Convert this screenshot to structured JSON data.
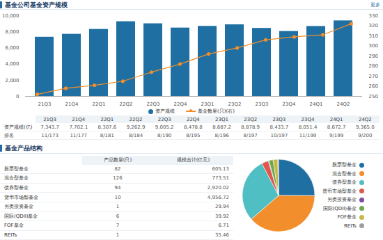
{
  "header": {
    "title": "基金公司基金资产规模",
    "link": "更多"
  },
  "chart_data": [
    {
      "type": "bar",
      "categories": [
        "21Q3",
        "21Q4",
        "22Q1",
        "22Q2",
        "22Q3",
        "22Q4",
        "23Q1",
        "23Q2",
        "23Q3",
        "23Q4",
        "24Q1",
        "24Q2"
      ],
      "series": [
        {
          "name": "资产规模",
          "type": "bar",
          "color": "#1f6fa3",
          "values": [
            7343.7,
            7702.1,
            8307.6,
            9262.9,
            9005.2,
            8478.8,
            8687.2,
            8878.9,
            8433.7,
            8051.4,
            8672.7,
            9365.0
          ]
        },
        {
          "name": "基金数量(只)(右)",
          "type": "line",
          "axis": "y2",
          "color": "#f28e2b",
          "marker": "circle",
          "values": [
            252,
            258,
            261,
            265,
            274,
            282,
            292,
            298,
            306,
            309,
            311,
            322
          ]
        }
      ],
      "ylim": [
        0,
        10000
      ],
      "yticks": [
        0,
        {
          "value": 2000,
          "label": "2,000"
        },
        {
          "value": 4000,
          "label": "4,000"
        },
        {
          "value": 6000,
          "label": "6,000"
        },
        {
          "value": 8000,
          "label": "8,000"
        },
        {
          "value": 10000,
          "label": "10,000"
        }
      ],
      "y2lim": [
        250,
        330
      ],
      "y2ticks": [
        250,
        260,
        270,
        280,
        290,
        300,
        310,
        320,
        330
      ],
      "grid": false,
      "legend": "bottom"
    },
    {
      "type": "pie",
      "categories": [
        "股票型基金",
        "混合型基金",
        "债券型基金",
        "货币市场型基金",
        "另类投资基金",
        "国际(QDII)基金",
        "FOF基金",
        "REITs"
      ],
      "values": [
        82,
        126,
        94,
        10,
        1,
        6,
        7,
        1
      ],
      "colors": [
        "#1f6fa3",
        "#f28e2b",
        "#4fbfc4",
        "#e0584b",
        "#7a4f9e",
        "#6aa84f",
        "#c8b84a",
        "#9e9e9e"
      ],
      "legend": "right"
    }
  ],
  "scale_table": {
    "columns": [
      "21Q3",
      "21Q4",
      "22Q1",
      "22Q2",
      "22Q3",
      "22Q4",
      "23Q1",
      "23Q2",
      "23Q3",
      "23Q4",
      "24Q1",
      "24Q2"
    ],
    "rows": [
      {
        "label": "资产规模(亿)",
        "cells": [
          "7,343.7",
          "7,702.1",
          "8,307.6",
          "9,262.9",
          "9,005.2",
          "8,478.8",
          "8,687.2",
          "8,878.9",
          "8,433.7",
          "8,051.4",
          "8,672.7",
          "9,365.0"
        ]
      },
      {
        "label": "排名",
        "cells": [
          "11/173",
          "11/177",
          "8/181",
          "8/184",
          "8/190",
          "8/195",
          "8/196",
          "8/197",
          "10/197",
          "11/199",
          "9/199",
          "9/200"
        ]
      }
    ]
  },
  "section": {
    "title": "基金产品结构"
  },
  "product_table": {
    "columns": [
      "产品数量(只)",
      "规模合计(亿元)"
    ],
    "rows": [
      {
        "label": "股票型基金",
        "cells": [
          "82",
          "605.13"
        ]
      },
      {
        "label": "混合型基金",
        "cells": [
          "126",
          "773.51"
        ]
      },
      {
        "label": "债券型基金",
        "cells": [
          "94",
          "2,920.02"
        ]
      },
      {
        "label": "货币市场型基金",
        "cells": [
          "10",
          "4,956.72"
        ]
      },
      {
        "label": "另类投资基金",
        "cells": [
          "1",
          "29.94"
        ]
      },
      {
        "label": "国际(QDII)基金",
        "cells": [
          "6",
          "39.92"
        ]
      },
      {
        "label": "FOF基金",
        "cells": [
          "7",
          "6.71"
        ]
      },
      {
        "label": "REITs",
        "cells": [
          "1",
          "35.46"
        ]
      }
    ]
  }
}
